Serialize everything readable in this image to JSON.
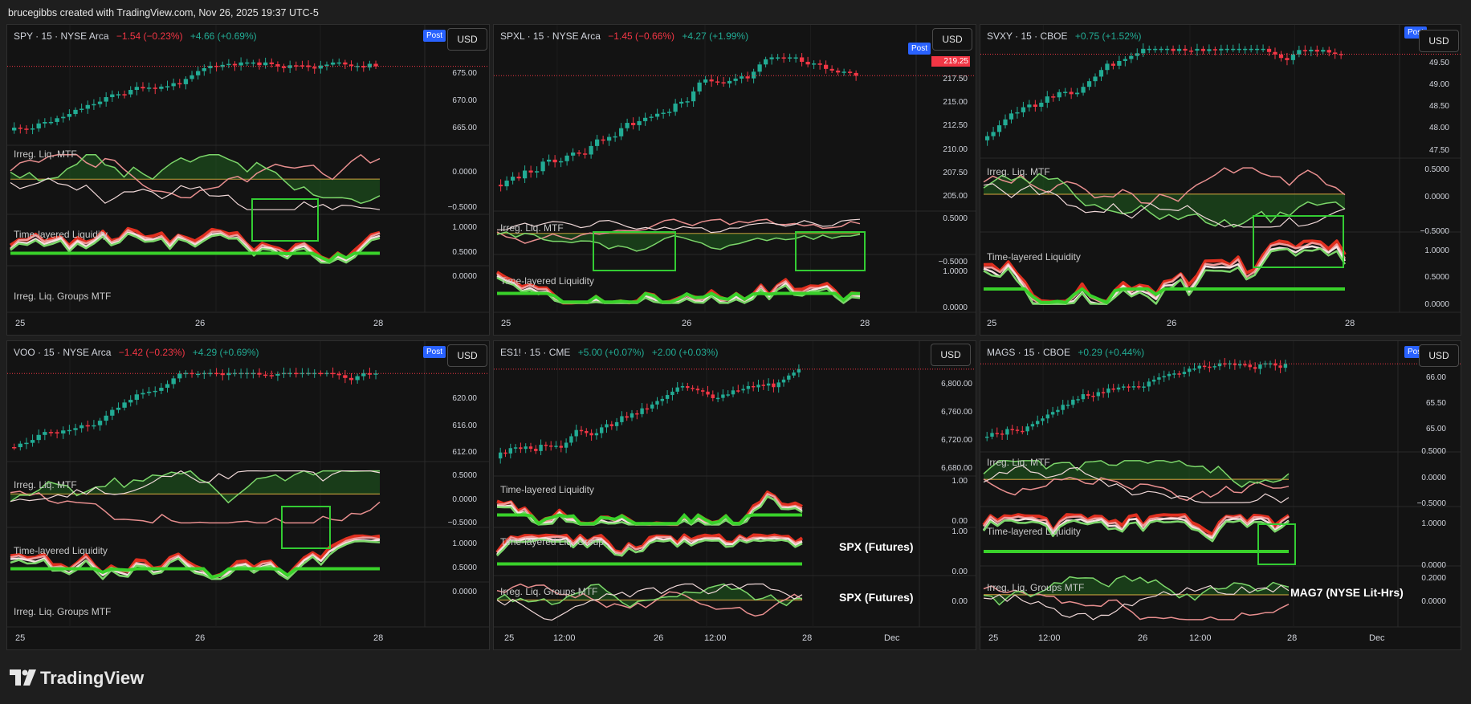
{
  "header": {
    "credit": "brucegibbs created with TradingView.com, Nov 26, 2025 19:37 UTC-5"
  },
  "footer": {
    "brand": "TradingView"
  },
  "colors": {
    "up": "#22ab94",
    "down": "#f23645",
    "accent": "#2962ff",
    "signal": "#00ff00"
  },
  "panels": [
    {
      "id": "spy",
      "symbol": "SPY · 15 · NYSE Arca",
      "change": "−1.54 (−0.23%)",
      "post_change": "+4.66 (+0.69%)",
      "currency": "USD",
      "session_badge": "Post",
      "price_labels": [
        "675.00",
        "670.00",
        "665.00"
      ],
      "indicators": [
        {
          "label": "Irreg. Liq. MTF",
          "scale": [
            "0.0000",
            "−0.5000"
          ]
        },
        {
          "label": "Time-layered Liquidity",
          "scale": [
            "1.0000",
            "0.5000",
            "0.0000"
          ]
        },
        {
          "label": "Irreg. Liq. Groups MTF",
          "scale": []
        }
      ],
      "x_ticks": [
        "25",
        "26",
        "28"
      ],
      "note": ""
    },
    {
      "id": "spxl",
      "symbol": "SPXL · 15 · NYSE Arca",
      "change": "−1.45 (−0.66%)",
      "post_change": "+4.27 (+1.99%)",
      "currency": "USD",
      "session_badge": "Post",
      "price_tag": "219.25",
      "price_labels": [
        "217.50",
        "215.00",
        "212.50",
        "210.00",
        "207.50",
        "205.00"
      ],
      "indicators": [
        {
          "label": "Irreg. Liq. MTF",
          "scale": [
            "0.5000",
            "−0.5000"
          ]
        },
        {
          "label": "Time-layered Liquidity",
          "scale": [
            "1.0000",
            "0.0000"
          ]
        }
      ],
      "x_ticks": [
        "25",
        "26",
        "28"
      ],
      "note": ""
    },
    {
      "id": "svxy",
      "symbol": "SVXY · 15 · CBOE",
      "change": "",
      "post_change": "+0.75 (+1.52%)",
      "currency": "USD",
      "session_badge": "Post",
      "price_labels": [
        "49.50",
        "49.00",
        "48.50",
        "48.00",
        "47.50"
      ],
      "indicators": [
        {
          "label": "Irreg. Liq. MTF",
          "scale": [
            "0.5000",
            "0.0000",
            "−0.5000"
          ]
        },
        {
          "label": "Time-layered Liquidity",
          "scale": [
            "1.0000",
            "0.5000",
            "0.0000"
          ]
        }
      ],
      "x_ticks": [
        "25",
        "26",
        "28"
      ],
      "note": ""
    },
    {
      "id": "voo",
      "symbol": "VOO · 15 · NYSE Arca",
      "change": "−1.42 (−0.23%)",
      "post_change": "+4.29 (+0.69%)",
      "currency": "USD",
      "session_badge": "Post",
      "price_labels": [
        "620.00",
        "616.00",
        "612.00"
      ],
      "indicators": [
        {
          "label": "Irreg. Liq. MTF",
          "scale": [
            "0.5000",
            "0.0000",
            "−0.5000"
          ]
        },
        {
          "label": "Time-layered Liquidity",
          "scale": [
            "1.0000",
            "0.5000",
            "0.0000"
          ]
        },
        {
          "label": "Irreg. Liq. Groups MTF",
          "scale": []
        }
      ],
      "x_ticks": [
        "25",
        "26",
        "28"
      ],
      "note": ""
    },
    {
      "id": "es1",
      "symbol": "ES1! · 15 · CME",
      "change": "",
      "post_change": "+5.00 (+0.07%)",
      "post_change2": "+2.00 (+0.03%)",
      "currency": "USD",
      "session_badge": "",
      "price_labels": [
        "6,800.00",
        "6,760.00",
        "6,720.00",
        "6,680.00"
      ],
      "indicators": [
        {
          "label": "Time-layered Liquidity",
          "scale": [
            "1.00",
            "0.00"
          ]
        },
        {
          "label": "Time-layered Liq. Group",
          "scale": [
            "1.00",
            "0.00"
          ]
        },
        {
          "label": "Irreg. Liq. Groups MTF",
          "scale": [
            "0.00"
          ]
        }
      ],
      "x_ticks": [
        "25",
        "12:00",
        "26",
        "12:00",
        "28",
        "Dec"
      ],
      "notes": [
        "SPX (Futures)",
        "SPX (Futures)"
      ]
    },
    {
      "id": "mags",
      "symbol": "MAGS · 15 · CBOE",
      "change": "",
      "post_change": "+0.29 (+0.44%)",
      "currency": "USD",
      "session_badge": "Post",
      "price_labels": [
        "66.00",
        "65.50",
        "65.00"
      ],
      "indicators": [
        {
          "label": "Irreg. Liq. MTF",
          "scale": [
            "0.5000",
            "0.0000",
            "−0.5000"
          ]
        },
        {
          "label": "Time-layered Liquidity",
          "scale": [
            "1.0000",
            "0.0000"
          ]
        },
        {
          "label": "Irreg. Liq. Groups MTF",
          "scale": [
            "0.2000",
            "0.0000"
          ]
        }
      ],
      "x_ticks": [
        "25",
        "12:00",
        "26",
        "12:00",
        "28",
        "Dec"
      ],
      "note": "MAG7 (NYSE Lit-Hrs)"
    }
  ]
}
